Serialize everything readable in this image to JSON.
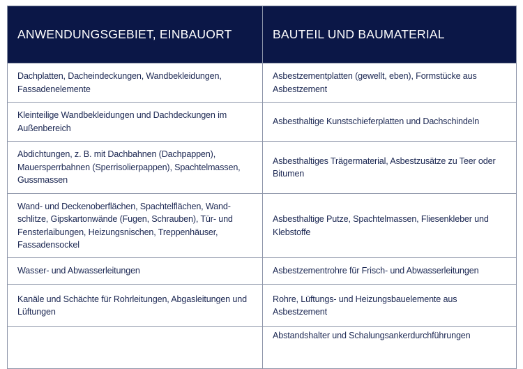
{
  "table": {
    "headers": [
      "ANWENDUNGSGEBIET, EINBAUORT",
      "BAUTEIL UND BAUMATERIAL"
    ],
    "rows": [
      [
        "Dachplatten, Dacheindeckungen, Wandbekleidungen, Fassadenelemente",
        "Asbestzementplatten (gewellt, eben), Formstücke aus Asbestzement"
      ],
      [
        "Kleinteilige Wandbekleidungen und Dachdeckungen im Außenbereich",
        "Asbesthaltige Kunstschieferplatten und Dachschindeln"
      ],
      [
        "Abdichtungen, z. B. mit Dachbahnen (Dachpappen), Mauersperrbahnen (Sperrisolierpappen), Spachtelmas­sen, Gussmassen",
        "Asbesthaltiges Trägermaterial, Asbestzusätze zu Teer oder Bitumen"
      ],
      [
        "Wand- und Deckenoberflächen, Spachtelflächen, Wand­schlitze, Gipskartonwände (Fugen, Schrauben), Tür- und Fensterlaibungen, Heizungsnischen, Treppenhäuser, Fassadensockel",
        "Asbesthaltige Putze, Spachtelmassen, Fliesenkleber und Klebstoffe"
      ],
      [
        "Wasser- und Abwasserleitungen",
        "Asbestzementrohre für Frisch- und Abwasserleitungen"
      ],
      [
        "Kanäle und Schächte für Rohrleitungen, Abgasleitungen und Lüftungen",
        "Rohre, Lüftungs- und Heizungsbauelemente aus Asbestzement"
      ],
      [
        "",
        "Abstandshalter und Schalungsankerdurchführungen"
      ]
    ]
  }
}
